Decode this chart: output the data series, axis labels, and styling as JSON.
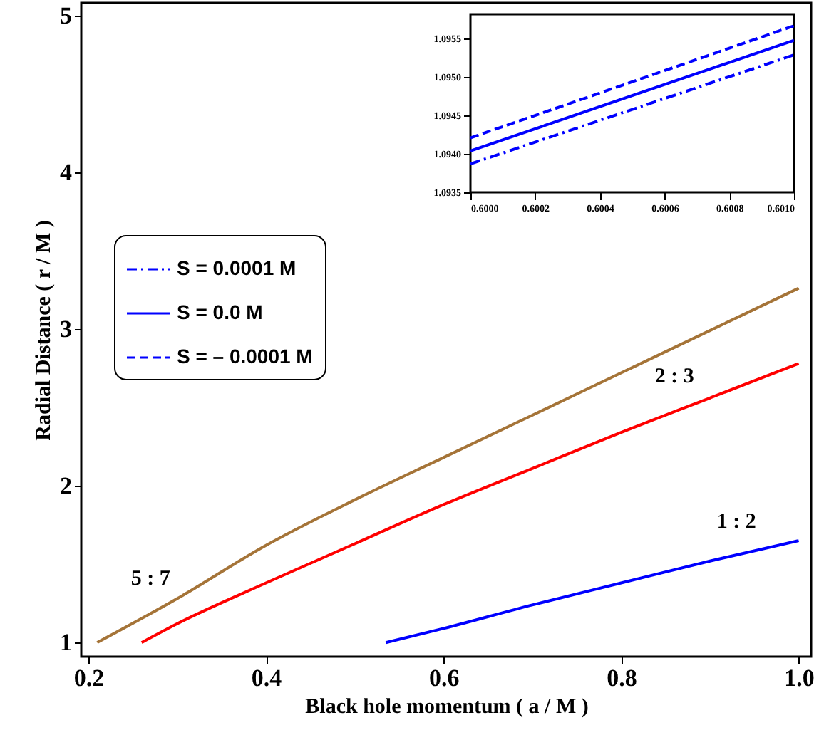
{
  "chart_data": [
    {
      "type": "line",
      "xlabel": "Black hole momentum ( a / M )",
      "ylabel": "Radial Distance ( r / M )",
      "xlim": [
        0.192,
        1.014
      ],
      "ylim": [
        0.91,
        5.08
      ],
      "xticks": [
        0.2,
        0.4,
        0.6,
        0.8,
        {
          "value": 1.0,
          "label": "1.0"
        }
      ],
      "yticks": [
        1,
        2,
        3,
        4,
        5
      ],
      "grid": false,
      "series": [
        {
          "color": "#a57438",
          "x": [
            0.21,
            0.3,
            0.4,
            0.5,
            0.6,
            0.7,
            0.8,
            0.9,
            1.0
          ],
          "values": [
            1.0,
            1.28,
            1.62,
            1.91,
            2.18,
            2.45,
            2.72,
            2.99,
            3.26
          ]
        },
        {
          "color": "#ff0000",
          "x": [
            0.26,
            0.3,
            0.4,
            0.5,
            0.6,
            0.7,
            0.8,
            0.9,
            1.0
          ],
          "values": [
            1.0,
            1.12,
            1.38,
            1.63,
            1.88,
            2.11,
            2.34,
            2.56,
            2.78
          ]
        },
        {
          "color": "#0000ff",
          "x": [
            0.535,
            0.6,
            0.7,
            0.8,
            0.9,
            1.0
          ],
          "values": [
            1.0,
            1.09,
            1.24,
            1.38,
            1.52,
            1.65
          ]
        }
      ],
      "annotations": [
        {
          "text": "5 : 7",
          "x": 0.27,
          "y": 1.18
        },
        {
          "text": "2 : 3",
          "x": 0.86,
          "y": 2.47
        },
        {
          "text": "1 : 2",
          "x": 0.93,
          "y": 1.54
        }
      ]
    },
    {
      "type": "line",
      "xlim": [
        0.6,
        0.601
      ],
      "ylim": [
        1.0935,
        1.09582
      ],
      "xticks": [
        {
          "value": 0.6,
          "label": "0.6000"
        },
        {
          "value": 0.6002,
          "label": "0.6002"
        },
        {
          "value": 0.6004,
          "label": "0.6004"
        },
        {
          "value": 0.6006,
          "label": "0.6006"
        },
        {
          "value": 0.6008,
          "label": "0.6008"
        },
        {
          "value": 0.601,
          "label": "0.6010"
        }
      ],
      "yticks": [
        1.0935,
        {
          "value": 1.094,
          "label": "1.0940"
        },
        1.0945,
        {
          "value": 1.095,
          "label": "1.0950"
        },
        1.0955
      ],
      "grid": false,
      "legend": "left",
      "series": [
        {
          "name": "S = 0.0001 M",
          "color": "#0000ff",
          "line_style": "dashdot",
          "x": [
            0.6,
            0.601
          ],
          "values": [
            1.09387,
            1.09529
          ]
        },
        {
          "name": "S = 0.0 M",
          "color": "#0000ff",
          "line_style": "solid",
          "x": [
            0.6,
            0.601
          ],
          "values": [
            1.09404,
            1.09548
          ]
        },
        {
          "name": "S = – 0.0001 M",
          "color": "#0000ff",
          "line_style": "dashed",
          "x": [
            0.6,
            0.601
          ],
          "values": [
            1.09421,
            1.09567
          ]
        }
      ]
    }
  ]
}
